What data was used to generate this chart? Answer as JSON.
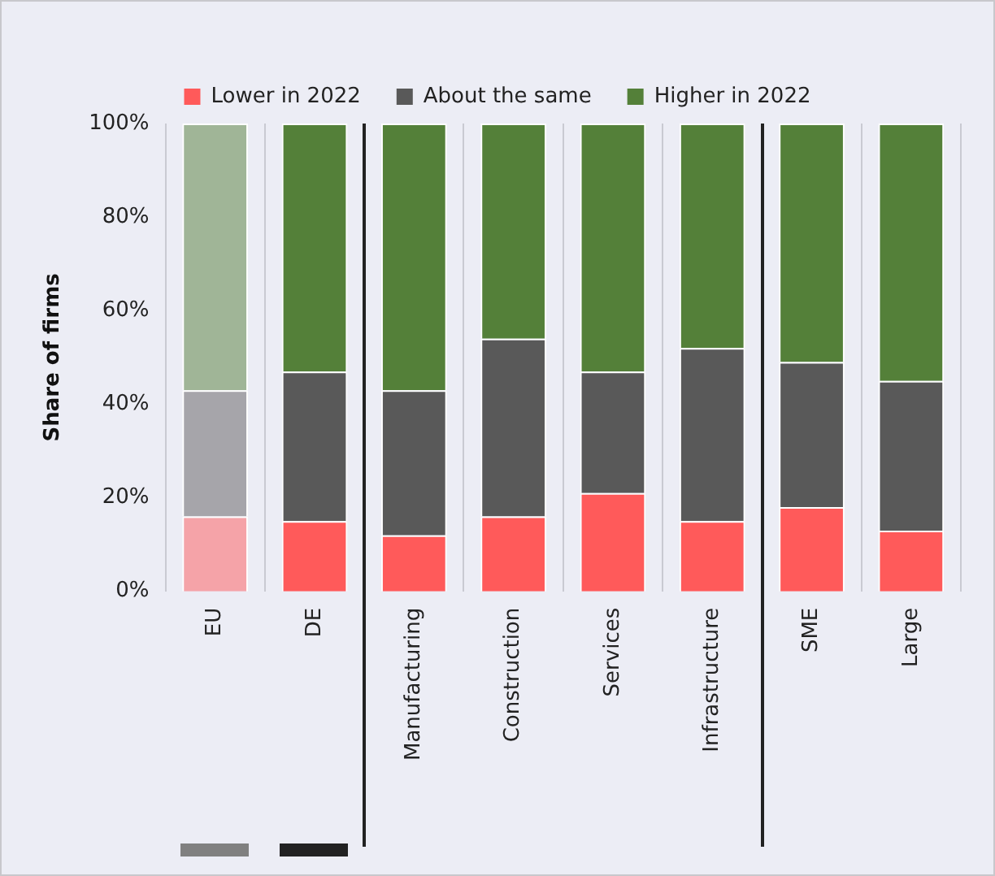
{
  "chart_data": {
    "type": "bar",
    "stacked": true,
    "ylabel": "Share of firms",
    "categories": [
      "EU",
      "DE",
      "Manufacturing",
      "Construction",
      "Services",
      "Infrastructure",
      "SME",
      "Large"
    ],
    "series": [
      {
        "name": "Lower in 2022",
        "color": "#ff5a5a",
        "colors": [
          "#f5a3a8",
          "#ff5a5a",
          "#ff5a5a",
          "#ff5a5a",
          "#ff5a5a",
          "#ff5a5a",
          "#ff5a5a",
          "#ff5a5a"
        ],
        "values": [
          16,
          15,
          12,
          16,
          21,
          15,
          18,
          13
        ]
      },
      {
        "name": "About the same",
        "color": "#595959",
        "colors": [
          "#a6a5aa",
          "#595959",
          "#595959",
          "#595959",
          "#595959",
          "#595959",
          "#595959",
          "#595959"
        ],
        "values": [
          27,
          32,
          31,
          38,
          26,
          37,
          31,
          32
        ]
      },
      {
        "name": "Higher in 2022",
        "color": "#548039",
        "colors": [
          "#a0b597",
          "#548039",
          "#548039",
          "#548039",
          "#548039",
          "#548039",
          "#548039",
          "#548039"
        ],
        "values": [
          57,
          53,
          57,
          46,
          53,
          48,
          51,
          55
        ]
      }
    ],
    "ylim": [
      0,
      100
    ],
    "yticks": [
      {
        "value": 0,
        "label": "0%"
      },
      {
        "value": 20,
        "label": "20%"
      },
      {
        "value": 40,
        "label": "40%"
      },
      {
        "value": 60,
        "label": "60%"
      },
      {
        "value": 80,
        "label": "80%"
      },
      {
        "value": 100,
        "label": "100%"
      }
    ],
    "grid": "x",
    "legend": "top"
  }
}
